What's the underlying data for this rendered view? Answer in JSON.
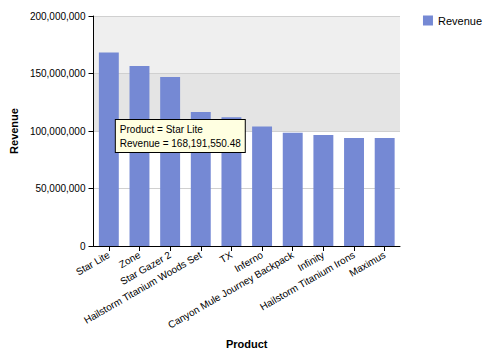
{
  "chart_data": {
    "type": "bar",
    "x_label": "Product",
    "y_label": "Revenue",
    "categories": [
      "Star Lite",
      "Zone",
      "Star Gazer 2",
      "Hailstorm Titanium Woods Set",
      "TX",
      "Inferno",
      "Canyon Mule Journey Backpack",
      "Infinity",
      "Hailstorm Titanium Irons",
      "Maximus"
    ],
    "series": [
      {
        "name": "Revenue",
        "color": "#7589d4",
        "values": [
          168191550.48,
          156500000,
          147000000,
          116500000,
          112000000,
          104000000,
          98500000,
          96500000,
          94000000,
          94000000
        ]
      }
    ],
    "ylim": [
      0,
      200000000
    ],
    "yticks": [
      0,
      {
        "value": 50000000,
        "label": "50,000,000"
      },
      {
        "value": 100000000,
        "label": "100,000,000"
      },
      {
        "value": 150000000,
        "label": "150,000,000"
      },
      {
        "value": 200000000,
        "label": "200,000,000"
      }
    ],
    "grid": true,
    "legend": "top-right",
    "annotations": [
      {
        "category": "Star Lite",
        "text": [
          "Product = Star Lite",
          "Revenue = 168,191,550.48"
        ]
      }
    ]
  }
}
